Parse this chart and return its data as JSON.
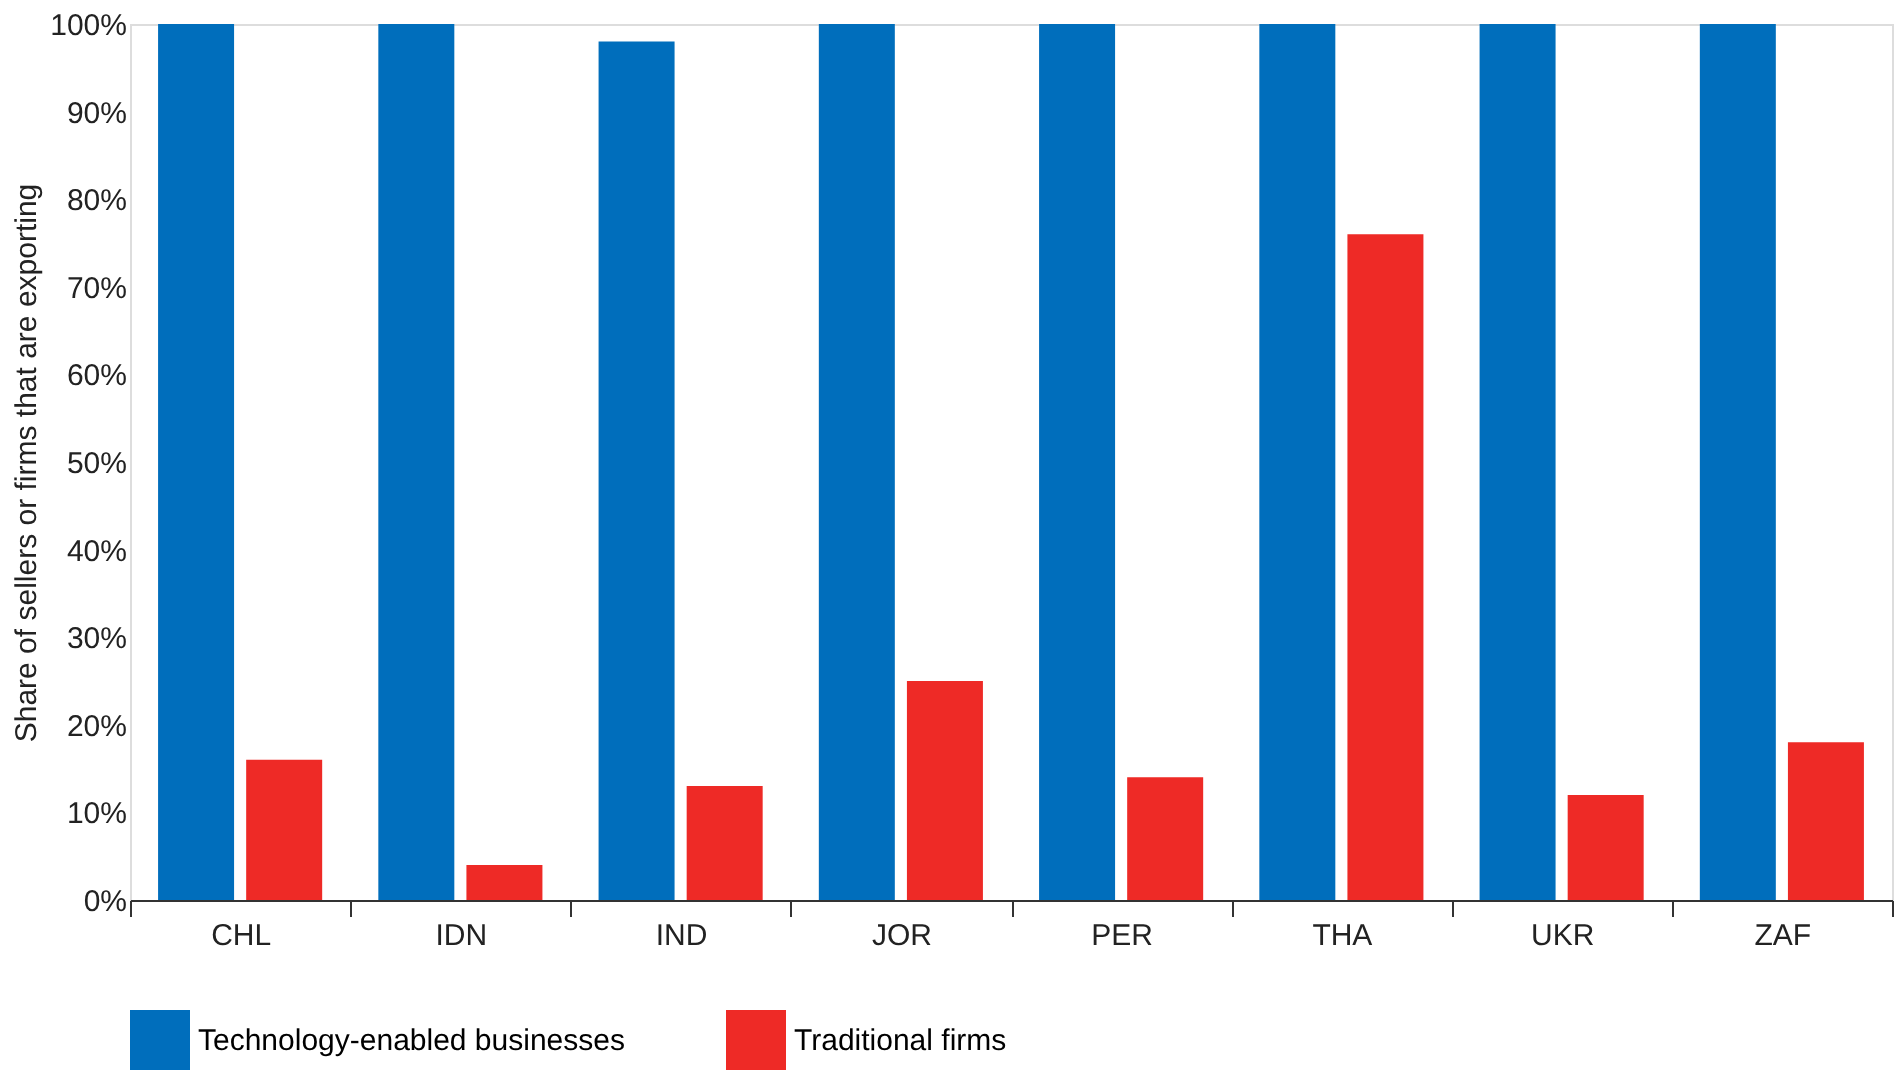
{
  "chart_data": {
    "type": "bar",
    "ylabel": "Share of sellers or firms that are exporting",
    "categories": [
      "CHL",
      "IDN",
      "IND",
      "JOR",
      "PER",
      "THA",
      "UKR",
      "ZAF"
    ],
    "series": [
      {
        "name": "Technology-enabled businesses",
        "color": "#006ebc",
        "values": [
          100,
          100,
          98,
          100,
          100,
          100,
          100,
          100
        ]
      },
      {
        "name": "Traditional firms",
        "color": "#ee2a26",
        "values": [
          16,
          4,
          13,
          25,
          14,
          76,
          12,
          18
        ]
      }
    ],
    "ylim": [
      0,
      100
    ],
    "yticks": [
      {
        "value": 0,
        "label": "0%"
      },
      {
        "value": 10,
        "label": "10%"
      },
      {
        "value": 20,
        "label": "20%"
      },
      {
        "value": 30,
        "label": "30%"
      },
      {
        "value": 40,
        "label": "40%"
      },
      {
        "value": 50,
        "label": "50%"
      },
      {
        "value": 60,
        "label": "60%"
      },
      {
        "value": 70,
        "label": "70%"
      },
      {
        "value": 80,
        "label": "80%"
      },
      {
        "value": 90,
        "label": "90%"
      },
      {
        "value": 100,
        "label": "100%"
      }
    ],
    "grid": false,
    "legend": "bottom left"
  }
}
